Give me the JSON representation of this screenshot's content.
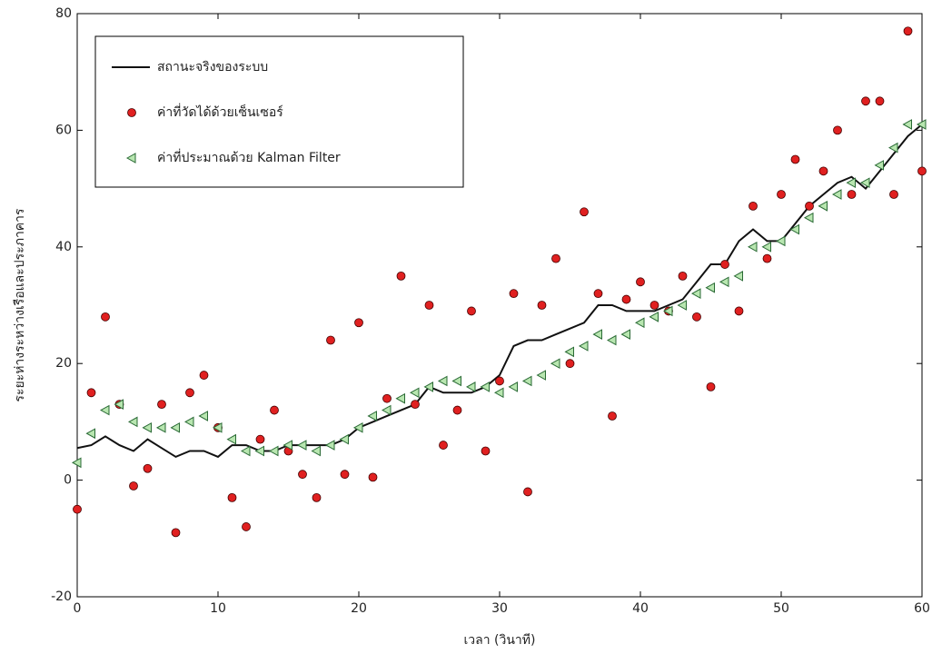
{
  "chart_data": {
    "type": "line",
    "xlabel": "เวลา (วินาที)",
    "ylabel": "ระยะห่างระหว่างเรือและประภาคาร",
    "x": [
      0,
      1,
      2,
      3,
      4,
      5,
      6,
      7,
      8,
      9,
      10,
      11,
      12,
      13,
      14,
      15,
      16,
      17,
      18,
      19,
      20,
      21,
      22,
      23,
      24,
      25,
      26,
      27,
      28,
      29,
      30,
      31,
      32,
      33,
      34,
      35,
      36,
      37,
      38,
      39,
      40,
      41,
      42,
      43,
      44,
      45,
      46,
      47,
      48,
      49,
      50,
      51,
      52,
      53,
      54,
      55,
      56,
      57,
      58,
      59,
      60
    ],
    "series": [
      {
        "name": "สถานะจริงของระบบ",
        "style": "line",
        "color": "#111111",
        "values": [
          5.5,
          6,
          7.5,
          6,
          5,
          7,
          5.5,
          4,
          5,
          5,
          4,
          6,
          6,
          5,
          5,
          6,
          6,
          6,
          6,
          7,
          9,
          10,
          11,
          12,
          13,
          16,
          15,
          15,
          15,
          16,
          18,
          23,
          24,
          24,
          25,
          26,
          27,
          30,
          30,
          29,
          29,
          29,
          30,
          31,
          34,
          37,
          37,
          41,
          43,
          41,
          41,
          44,
          47,
          49,
          51,
          52,
          50,
          53,
          56,
          59,
          61
        ]
      },
      {
        "name": "ค่าที่วัดได้ด้วยเซ็นเซอร์",
        "style": "markers",
        "marker": "circle",
        "color": "#e02020",
        "values": [
          -5,
          15,
          28,
          13,
          -1,
          2,
          13,
          -9,
          15,
          18,
          9,
          -3,
          -8,
          7,
          12,
          5,
          1,
          -3,
          24,
          1,
          27,
          0.5,
          14,
          35,
          13,
          30,
          6,
          12,
          29,
          5,
          17,
          32,
          -2,
          30,
          38,
          20,
          46,
          32,
          11,
          31,
          34,
          30,
          29,
          35,
          28,
          16,
          37,
          29,
          47,
          38,
          49,
          55,
          47,
          53,
          60,
          49,
          65,
          65,
          49,
          77,
          53
        ]
      },
      {
        "name": "ค่าที่ประมาณด้วย Kalman Filter",
        "style": "markers",
        "marker": "triangle-left",
        "color": "#b8e6b0",
        "values": [
          3,
          8,
          12,
          13,
          10,
          9,
          9,
          9,
          10,
          11,
          9,
          7,
          5,
          5,
          5,
          6,
          6,
          5,
          6,
          7,
          9,
          11,
          12,
          14,
          15,
          16,
          17,
          17,
          16,
          16,
          15,
          16,
          17,
          18,
          20,
          22,
          23,
          25,
          24,
          25,
          27,
          28,
          29,
          30,
          32,
          33,
          34,
          35,
          40,
          40,
          41,
          43,
          45,
          47,
          49,
          51,
          51,
          54,
          57,
          61,
          61
        ]
      }
    ],
    "xlim": [
      0,
      60
    ],
    "xticks": [
      0,
      10,
      20,
      30,
      40,
      50,
      60
    ],
    "ylim": [
      -20,
      80
    ],
    "yticks": [
      -20,
      0,
      20,
      40,
      60,
      80
    ],
    "grid": false,
    "legend": "upper left"
  }
}
